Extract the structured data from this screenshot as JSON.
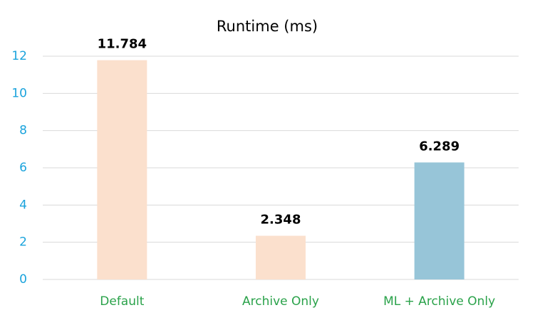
{
  "chart_data": {
    "type": "bar",
    "title": "Runtime (ms)",
    "categories": [
      "Default",
      "Archive Only",
      "ML + Archive Only"
    ],
    "values": [
      11.784,
      2.348,
      6.289
    ],
    "colors": [
      "#fbe0cd",
      "#fbe0cd",
      "#97c5d8"
    ],
    "ylim": [
      0,
      12
    ],
    "yticks": [
      0,
      2,
      4,
      6,
      8,
      10,
      12
    ],
    "grid": true,
    "show_value_labels": true
  }
}
